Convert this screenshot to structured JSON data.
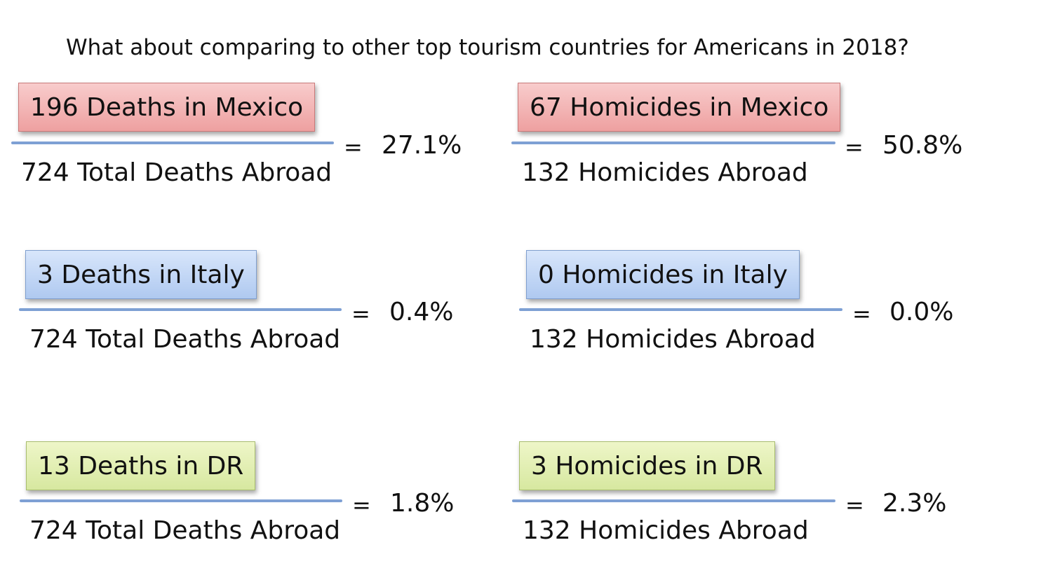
{
  "title": "What about comparing to other top tourism countries for Americans in 2018?",
  "equals_sign": "=",
  "accent_colors": {
    "mexico": "#eea0a0",
    "italy": "#afc9f0",
    "dr": "#d7e8a0",
    "fraction_line": "#7ea0d4"
  },
  "deaths": [
    {
      "numerator": "196 Deaths in Mexico",
      "denominator": "724 Total Deaths Abroad",
      "result": "27.1%"
    },
    {
      "numerator": "3 Deaths in Italy",
      "denominator": "724 Total Deaths Abroad",
      "result": "0.4%"
    },
    {
      "numerator": "13 Deaths in DR",
      "denominator": "724 Total Deaths Abroad",
      "result": "1.8%"
    }
  ],
  "homicides": [
    {
      "numerator": "67 Homicides in Mexico",
      "denominator": "132 Homicides Abroad",
      "result": "50.8%"
    },
    {
      "numerator": "0 Homicides in Italy",
      "denominator": "132 Homicides Abroad",
      "result": "0.0%"
    },
    {
      "numerator": "3 Homicides in DR",
      "denominator": "132 Homicides Abroad",
      "result": "2.3%"
    }
  ]
}
